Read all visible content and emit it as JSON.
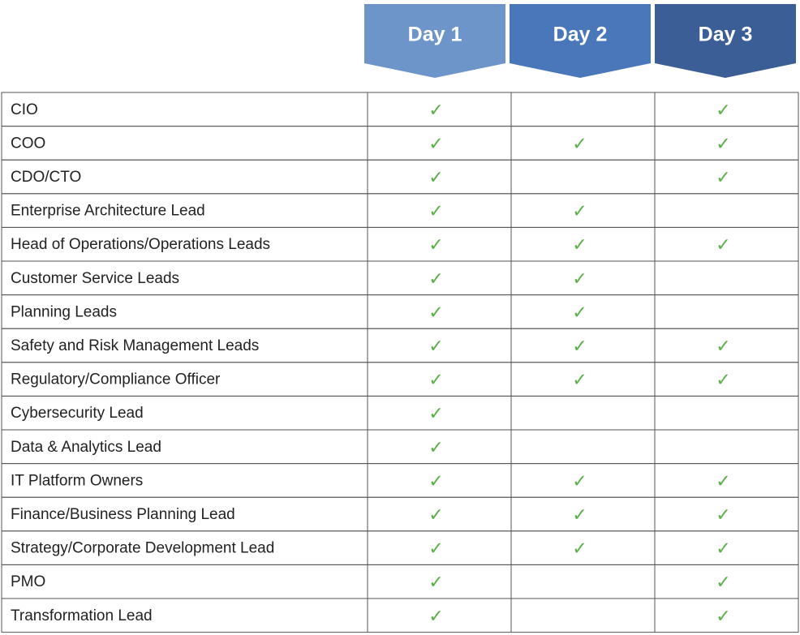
{
  "header": {
    "days": [
      "Day 1",
      "Day 2",
      "Day 3"
    ]
  },
  "table": {
    "rows": [
      [
        "CIO",
        "✓",
        null,
        "✓"
      ],
      [
        "COO",
        "✓",
        "✓",
        "✓"
      ],
      [
        "CDO/CTO",
        "✓",
        null,
        "✓"
      ],
      [
        "Enterprise Architecture Lead",
        "✓",
        "✓",
        null
      ],
      [
        "Head of Operations/Operations Leads",
        "✓",
        "✓",
        "✓"
      ],
      [
        "Customer Service Leads",
        "✓",
        "✓",
        null
      ],
      [
        "Planning Leads",
        "✓",
        "✓",
        null
      ],
      [
        "Safety and Risk Management Leads",
        "✓",
        "✓",
        "✓"
      ],
      [
        "Regulatory/Compliance Officer",
        "✓",
        "✓",
        "✓"
      ],
      [
        "Cybersecurity Lead",
        "✓",
        null,
        null
      ],
      [
        "Data & Analytics Lead",
        "✓",
        null,
        null
      ],
      [
        "IT Platform Owners",
        "✓",
        "✓",
        "✓"
      ],
      [
        "Finance/Business Planning Lead",
        "✓",
        "✓",
        "✓"
      ],
      [
        "Strategy/Corporate Development Lead",
        "✓",
        "✓",
        "✓"
      ],
      [
        "PMO",
        "✓",
        null,
        "✓"
      ],
      [
        "Transformation Lead",
        "✓",
        null,
        "✓"
      ]
    ]
  }
}
